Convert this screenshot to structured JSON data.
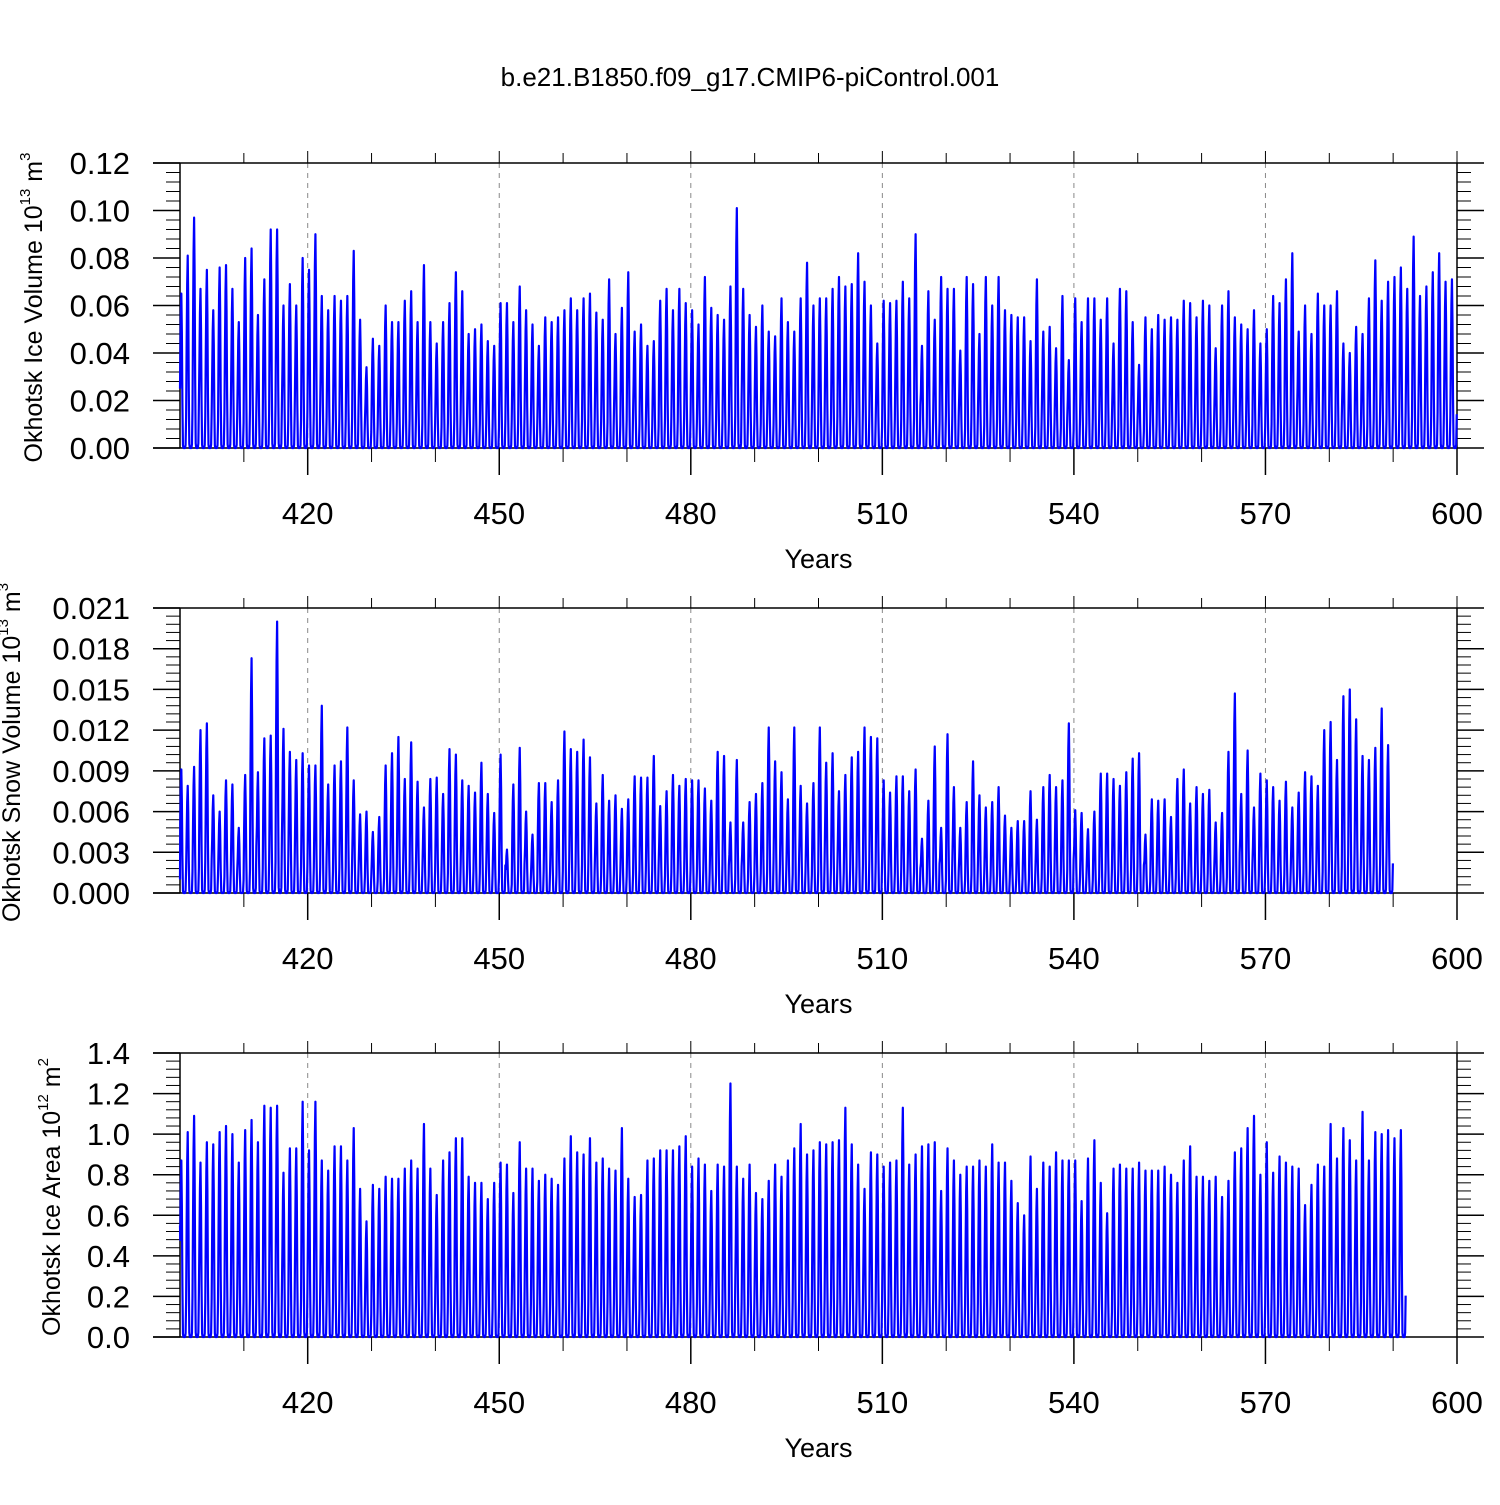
{
  "title": "b.e21.B1850.f09_g17.CMIP6-piControl.001",
  "colors": {
    "series": "#0000ff",
    "axis": "#000000",
    "grid": "#888888"
  },
  "chart_data": [
    {
      "type": "line",
      "ylabel": {
        "main": "Okhotsk Ice Volume 10",
        "sup": "13",
        "unit": " m",
        "unit_sup": "3"
      },
      "xlabel": "Years",
      "xlim": [
        400,
        600
      ],
      "ylim": [
        0,
        0.12
      ],
      "xticks": [
        420,
        450,
        480,
        510,
        540,
        570,
        600
      ],
      "xtick_labels": [
        "420",
        "450",
        "480",
        "510",
        "540",
        "570",
        "600"
      ],
      "yticks": [
        0,
        0.02,
        0.04,
        0.06,
        0.08,
        0.1,
        0.12
      ],
      "ytick_labels": [
        "0.00",
        "0.02",
        "0.04",
        "0.06",
        "0.08",
        "0.10",
        "0.12"
      ],
      "grid": "dashed vertical lines at x ticks",
      "series": [
        {
          "monthly_minimum": 0,
          "start_value": 0.025,
          "annual_peaks": [
            0.065,
            0.081,
            0.097,
            0.067,
            0.075,
            0.058,
            0.076,
            0.077,
            0.067,
            0.053,
            0.08,
            0.084,
            0.056,
            0.071,
            0.092,
            0.092,
            0.06,
            0.069,
            0.06,
            0.08,
            0.075,
            0.09,
            0.064,
            0.058,
            0.064,
            0.062,
            0.064,
            0.083,
            0.054,
            0.034,
            0.046,
            0.043,
            0.06,
            0.053,
            0.053,
            0.062,
            0.066,
            0.053,
            0.077,
            0.053,
            0.044,
            0.053,
            0.061,
            0.074,
            0.066,
            0.048,
            0.05,
            0.052,
            0.045,
            0.043,
            0.061,
            0.061,
            0.053,
            0.068,
            0.058,
            0.052,
            0.043,
            0.055,
            0.053,
            0.055,
            0.058,
            0.063,
            0.058,
            0.063,
            0.065,
            0.057,
            0.054,
            0.071,
            0.048,
            0.059,
            0.074,
            0.049,
            0.052,
            0.043,
            0.045,
            0.062,
            0.067,
            0.058,
            0.067,
            0.061,
            0.058,
            0.052,
            0.072,
            0.059,
            0.056,
            0.054,
            0.068,
            0.101,
            0.067,
            0.056,
            0.051,
            0.06,
            0.049,
            0.047,
            0.063,
            0.053,
            0.049,
            0.063,
            0.078,
            0.06,
            0.063,
            0.063,
            0.067,
            0.072,
            0.068,
            0.069,
            0.082,
            0.07,
            0.06,
            0.044,
            0.062,
            0.061,
            0.062,
            0.07,
            0.063,
            0.09,
            0.043,
            0.066,
            0.054,
            0.072,
            0.067,
            0.067,
            0.041,
            0.072,
            0.069,
            0.048,
            0.072,
            0.06,
            0.072,
            0.058,
            0.056,
            0.055,
            0.055,
            0.045,
            0.071,
            0.049,
            0.051,
            0.042,
            0.064,
            0.037,
            0.063,
            0.053,
            0.063,
            0.063,
            0.054,
            0.063,
            0.044,
            0.067,
            0.066,
            0.053,
            0.035,
            0.055,
            0.05,
            0.056,
            0.054,
            0.055,
            0.054,
            0.062,
            0.061,
            0.055,
            0.062,
            0.06,
            0.042,
            0.06,
            0.066,
            0.055,
            0.052,
            0.05,
            0.058,
            0.044,
            0.05,
            0.064,
            0.061,
            0.071,
            0.082,
            0.049,
            0.06,
            0.048,
            0.065,
            0.06,
            0.06,
            0.066,
            0.044,
            0.04,
            0.051,
            0.048,
            0.063,
            0.079,
            0.062,
            0.07,
            0.072,
            0.076,
            0.067,
            0.089,
            0.064,
            0.068,
            0.074,
            0.082,
            0.07,
            0.071
          ]
        }
      ]
    },
    {
      "type": "line",
      "ylabel": {
        "main": "Okhotsk Snow Volume 10",
        "sup": "13",
        "unit": " m",
        "unit_sup": "3"
      },
      "xlabel": "Years",
      "xlim": [
        400,
        600
      ],
      "ylim": [
        0,
        0.021
      ],
      "xticks": [
        420,
        450,
        480,
        510,
        540,
        570,
        600
      ],
      "xtick_labels": [
        "420",
        "450",
        "480",
        "510",
        "540",
        "570",
        "600"
      ],
      "yticks": [
        0,
        0.003,
        0.006,
        0.009,
        0.012,
        0.015,
        0.018,
        0.021
      ],
      "ytick_labels": [
        "0.000",
        "0.003",
        "0.006",
        "0.009",
        "0.012",
        "0.015",
        "0.018",
        "0.021"
      ],
      "grid": "dashed vertical lines at x ticks",
      "series": [
        {
          "monthly_minimum": 0,
          "start_value": 0.001,
          "annual_peaks": [
            0.0091,
            0.0079,
            0.0093,
            0.012,
            0.0125,
            0.0072,
            0.006,
            0.0083,
            0.008,
            0.0048,
            0.0087,
            0.0173,
            0.0089,
            0.0114,
            0.0116,
            0.02,
            0.0121,
            0.0104,
            0.0098,
            0.0103,
            0.0094,
            0.0094,
            0.0138,
            0.008,
            0.0094,
            0.0097,
            0.0122,
            0.0083,
            0.0058,
            0.006,
            0.0045,
            0.0056,
            0.0094,
            0.0103,
            0.0115,
            0.0084,
            0.0111,
            0.0082,
            0.0063,
            0.0084,
            0.0085,
            0.0073,
            0.0106,
            0.0102,
            0.0083,
            0.0079,
            0.0074,
            0.0096,
            0.0073,
            0.0059,
            0.0102,
            0.0032,
            0.008,
            0.0107,
            0.006,
            0.0043,
            0.0081,
            0.0081,
            0.0067,
            0.0083,
            0.0119,
            0.0106,
            0.0104,
            0.0113,
            0.01,
            0.0066,
            0.0087,
            0.0068,
            0.0072,
            0.0062,
            0.0069,
            0.0086,
            0.0085,
            0.0085,
            0.0101,
            0.0064,
            0.0075,
            0.0087,
            0.0079,
            0.0084,
            0.0083,
            0.0083,
            0.0077,
            0.0068,
            0.0104,
            0.0101,
            0.0052,
            0.0098,
            0.0052,
            0.0067,
            0.0073,
            0.0081,
            0.0122,
            0.0097,
            0.0089,
            0.0069,
            0.0122,
            0.0079,
            0.0066,
            0.0081,
            0.0122,
            0.0096,
            0.0103,
            0.0075,
            0.0087,
            0.01,
            0.0104,
            0.0122,
            0.0115,
            0.0114,
            0.0083,
            0.0074,
            0.0086,
            0.0086,
            0.0075,
            0.0091,
            0.004,
            0.0068,
            0.0108,
            0.0048,
            0.0117,
            0.0078,
            0.0048,
            0.0067,
            0.0097,
            0.0072,
            0.0063,
            0.0067,
            0.0078,
            0.0057,
            0.0048,
            0.0053,
            0.0053,
            0.0075,
            0.0054,
            0.0078,
            0.0087,
            0.0078,
            0.0083,
            0.0125,
            0.0061,
            0.0059,
            0.0047,
            0.006,
            0.0088,
            0.0088,
            0.0084,
            0.0079,
            0.0089,
            0.0099,
            0.0103,
            0.0043,
            0.0069,
            0.0068,
            0.0069,
            0.0056,
            0.0084,
            0.0091,
            0.0066,
            0.0078,
            0.0073,
            0.0076,
            0.0052,
            0.0059,
            0.0104,
            0.0147,
            0.0073,
            0.0105,
            0.0063,
            0.0088,
            0.0083,
            0.0078,
            0.0068,
            0.0082,
            0.0063,
            0.0074,
            0.0089,
            0.0086,
            0.0079,
            0.012,
            0.0126,
            0.0098,
            0.0145,
            0.015,
            0.0128,
            0.0101,
            0.0098,
            0.0107,
            0.0136,
            0.0109
          ]
        }
      ]
    },
    {
      "type": "line",
      "ylabel": {
        "main": "Okhotsk Ice Area 10",
        "sup": "12",
        "unit": " m",
        "unit_sup": "2"
      },
      "xlabel": "Years",
      "xlim": [
        400,
        600
      ],
      "ylim": [
        0,
        1.4
      ],
      "xticks": [
        420,
        450,
        480,
        510,
        540,
        570,
        600
      ],
      "xtick_labels": [
        "420",
        "450",
        "480",
        "510",
        "540",
        "570",
        "600"
      ],
      "yticks": [
        0,
        0.2,
        0.4,
        0.6,
        0.8,
        1.0,
        1.2,
        1.4
      ],
      "ytick_labels": [
        "0.0",
        "0.2",
        "0.4",
        "0.6",
        "0.8",
        "1.0",
        "1.2",
        "1.4"
      ],
      "grid": "dashed vertical lines at x ticks",
      "series": [
        {
          "monthly_minimum": 0,
          "start_value": 0.55,
          "annual_peaks": [
            0.87,
            1.01,
            1.09,
            0.86,
            0.96,
            0.95,
            1.01,
            1.04,
            1.0,
            0.86,
            1.02,
            1.07,
            0.96,
            1.14,
            1.13,
            1.14,
            0.81,
            0.93,
            0.93,
            1.16,
            0.92,
            1.16,
            0.87,
            0.82,
            0.94,
            0.94,
            0.87,
            1.03,
            0.73,
            0.57,
            0.75,
            0.73,
            0.79,
            0.78,
            0.78,
            0.83,
            0.87,
            0.83,
            1.05,
            0.83,
            0.7,
            0.87,
            0.91,
            0.98,
            0.98,
            0.79,
            0.76,
            0.76,
            0.68,
            0.76,
            0.86,
            0.85,
            0.71,
            0.96,
            0.83,
            0.83,
            0.77,
            0.8,
            0.78,
            0.75,
            0.88,
            0.99,
            0.91,
            0.9,
            0.98,
            0.86,
            0.88,
            0.83,
            0.82,
            1.03,
            0.78,
            0.69,
            0.7,
            0.87,
            0.88,
            0.92,
            0.92,
            0.92,
            0.94,
            0.99,
            0.84,
            0.88,
            0.85,
            0.72,
            0.85,
            0.84,
            1.25,
            0.84,
            0.78,
            0.85,
            0.71,
            0.68,
            0.77,
            0.85,
            0.79,
            0.87,
            0.93,
            1.05,
            0.9,
            0.92,
            0.96,
            0.95,
            0.96,
            0.97,
            1.13,
            0.95,
            0.85,
            0.73,
            0.91,
            0.9,
            0.84,
            0.86,
            0.87,
            1.13,
            0.85,
            0.9,
            0.94,
            0.95,
            0.96,
            0.72,
            0.93,
            0.87,
            0.8,
            0.84,
            0.84,
            0.87,
            0.84,
            0.95,
            0.86,
            0.86,
            0.77,
            0.66,
            0.6,
            0.89,
            0.73,
            0.86,
            0.84,
            0.91,
            0.87,
            0.87,
            0.87,
            0.67,
            0.88,
            0.97,
            0.76,
            0.61,
            0.83,
            0.85,
            0.83,
            0.83,
            0.86,
            0.82,
            0.82,
            0.82,
            0.84,
            0.8,
            0.76,
            0.87,
            0.94,
            0.79,
            0.79,
            0.77,
            0.79,
            0.69,
            0.77,
            0.91,
            0.93,
            1.03,
            1.09,
            0.8,
            0.96,
            0.81,
            0.89,
            0.86,
            0.84,
            0.83,
            0.65,
            0.75,
            0.85,
            0.84,
            1.05,
            0.88,
            1.03,
            0.97,
            0.87,
            1.11,
            0.87,
            1.01,
            1.0,
            1.02,
            0.98,
            1.02
          ]
        }
      ]
    }
  ]
}
